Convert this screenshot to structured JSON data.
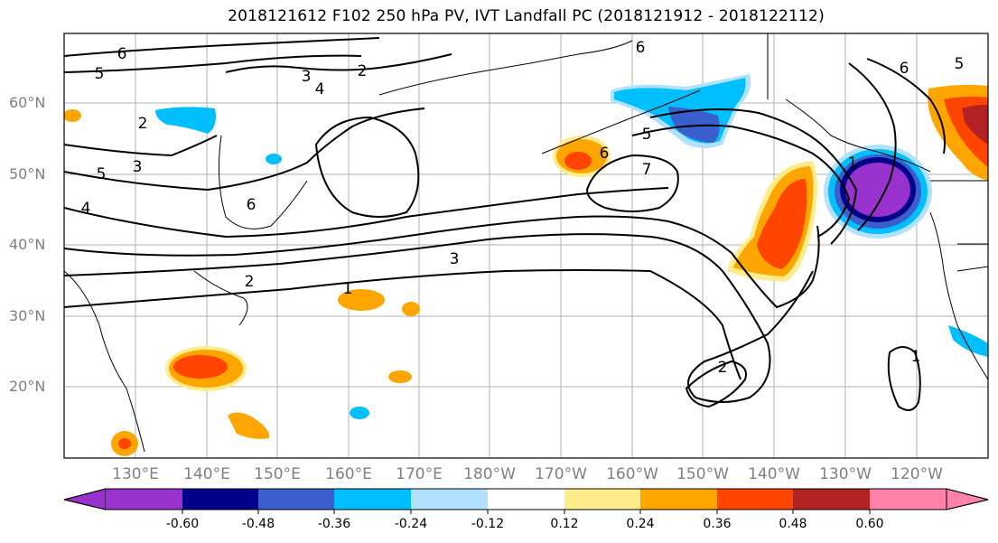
{
  "title": "2018121612 F102 250 hPa PV, IVT Landfall PC (2018121912 - 2018122112)",
  "lat_labels": [
    "60°N",
    "50°N",
    "40°N",
    "30°N",
    "20°N"
  ],
  "lon_labels": [
    "130°E",
    "140°E",
    "150°E",
    "160°E",
    "170°E",
    "180°W",
    "170°W",
    "160°W",
    "150°W",
    "140°W",
    "130°W",
    "120°W"
  ],
  "contour_labels": [
    "6",
    "5",
    "3",
    "2",
    "4",
    "2",
    "5",
    "3",
    "4",
    "6",
    "2",
    "3",
    "1",
    "6",
    "7",
    "5",
    "6",
    "5",
    "6",
    "2",
    "1",
    "1"
  ],
  "colorbar": {
    "tick_labels": [
      "-0.60",
      "-0.48",
      "-0.36",
      "-0.24",
      "-0.12",
      "0.12",
      "0.24",
      "0.36",
      "0.48",
      "0.60"
    ],
    "colors": [
      "#9932cc",
      "#00008b",
      "#3a5fcd",
      "#00bfff",
      "#b0e2ff",
      "#ffffff",
      "#ffec8b",
      "#ffa500",
      "#ff4500",
      "#b22222",
      "#ff82ab"
    ]
  }
}
